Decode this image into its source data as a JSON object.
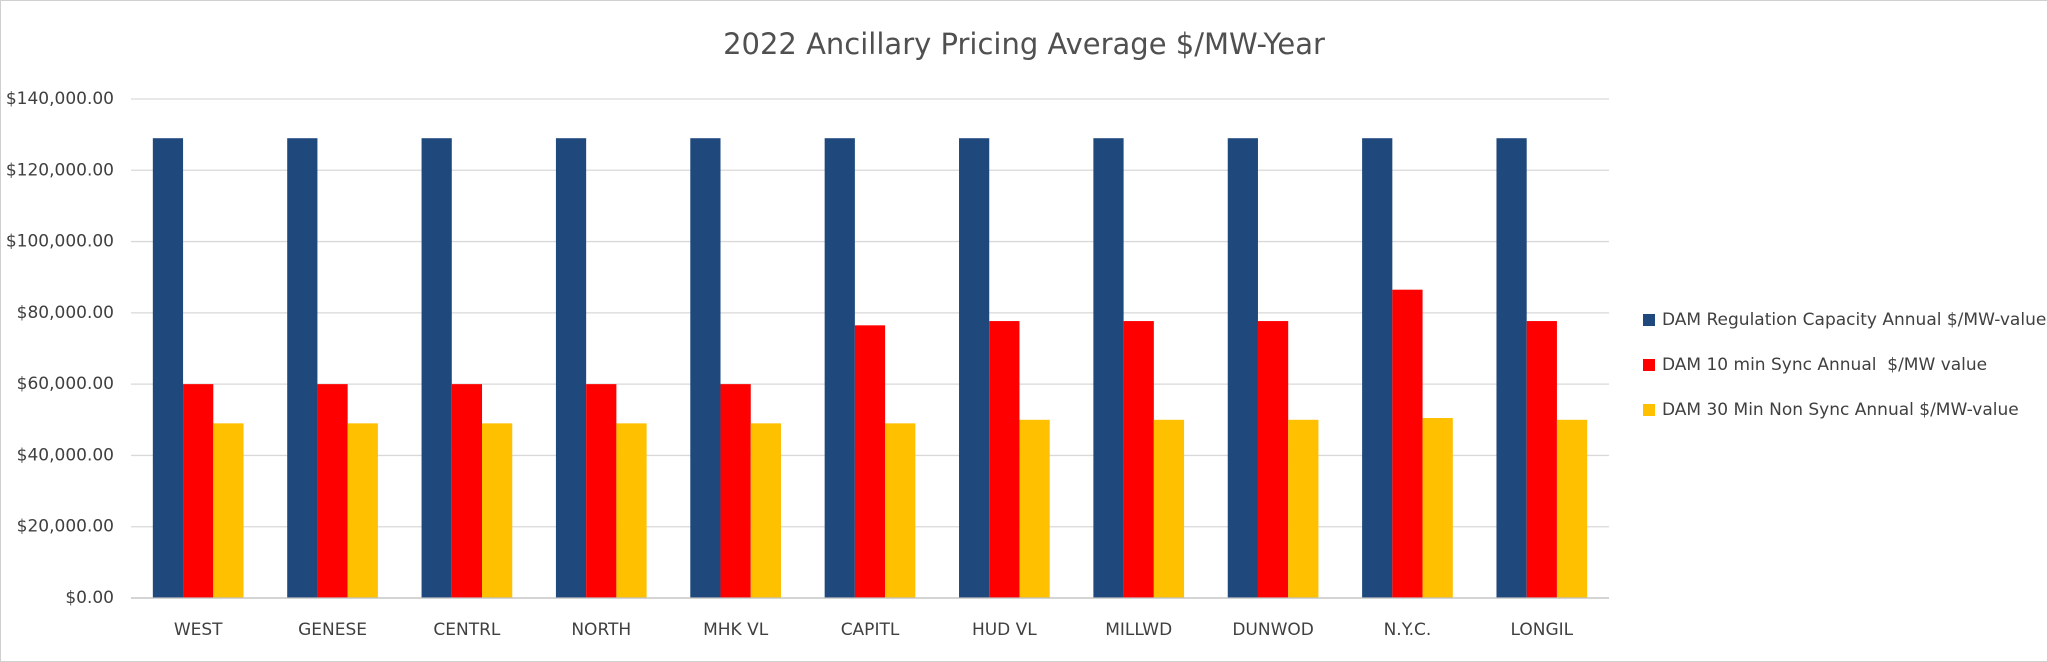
{
  "chart_data": {
    "type": "bar",
    "title": "2022 Ancillary Pricing Average $/MW-Year",
    "categories": [
      "WEST",
      "GENESE",
      "CENTRL",
      "NORTH",
      "MHK VL",
      "CAPITL",
      "HUD VL",
      "MILLWD",
      "DUNWOD",
      "N.Y.C.",
      "LONGIL"
    ],
    "series": [
      {
        "name": "DAM Regulation Capacity Annual $/MW-value",
        "color": "#1f497d",
        "values": [
          129000,
          129000,
          129000,
          129000,
          129000,
          129000,
          129000,
          129000,
          129000,
          129000,
          129000
        ]
      },
      {
        "name": "DAM 10 min Sync Annual  $/MW value",
        "color": "#ff0000",
        "values": [
          60000,
          60000,
          60000,
          60000,
          60000,
          76500,
          77700,
          77700,
          77700,
          86500,
          77700
        ]
      },
      {
        "name": "DAM 30 Min Non Sync Annual $/MW-value",
        "color": "#ffc000",
        "values": [
          49000,
          49000,
          49000,
          49000,
          49000,
          49000,
          50000,
          50000,
          50000,
          50500,
          50000
        ]
      }
    ],
    "ylim": [
      0,
      140000
    ],
    "yticks": [
      {
        "value": 0,
        "label": "$0.00"
      },
      {
        "value": 20000,
        "label": "$20,000.00"
      },
      {
        "value": 40000,
        "label": "$40,000.00"
      },
      {
        "value": 60000,
        "label": "$60,000.00"
      },
      {
        "value": 80000,
        "label": "$80,000.00"
      },
      {
        "value": 100000,
        "label": "$100,000.00"
      },
      {
        "value": 120000,
        "label": "$120,000.00"
      },
      {
        "value": 140000,
        "label": "$140,000.00"
      }
    ],
    "grid": true,
    "legend": "right"
  }
}
